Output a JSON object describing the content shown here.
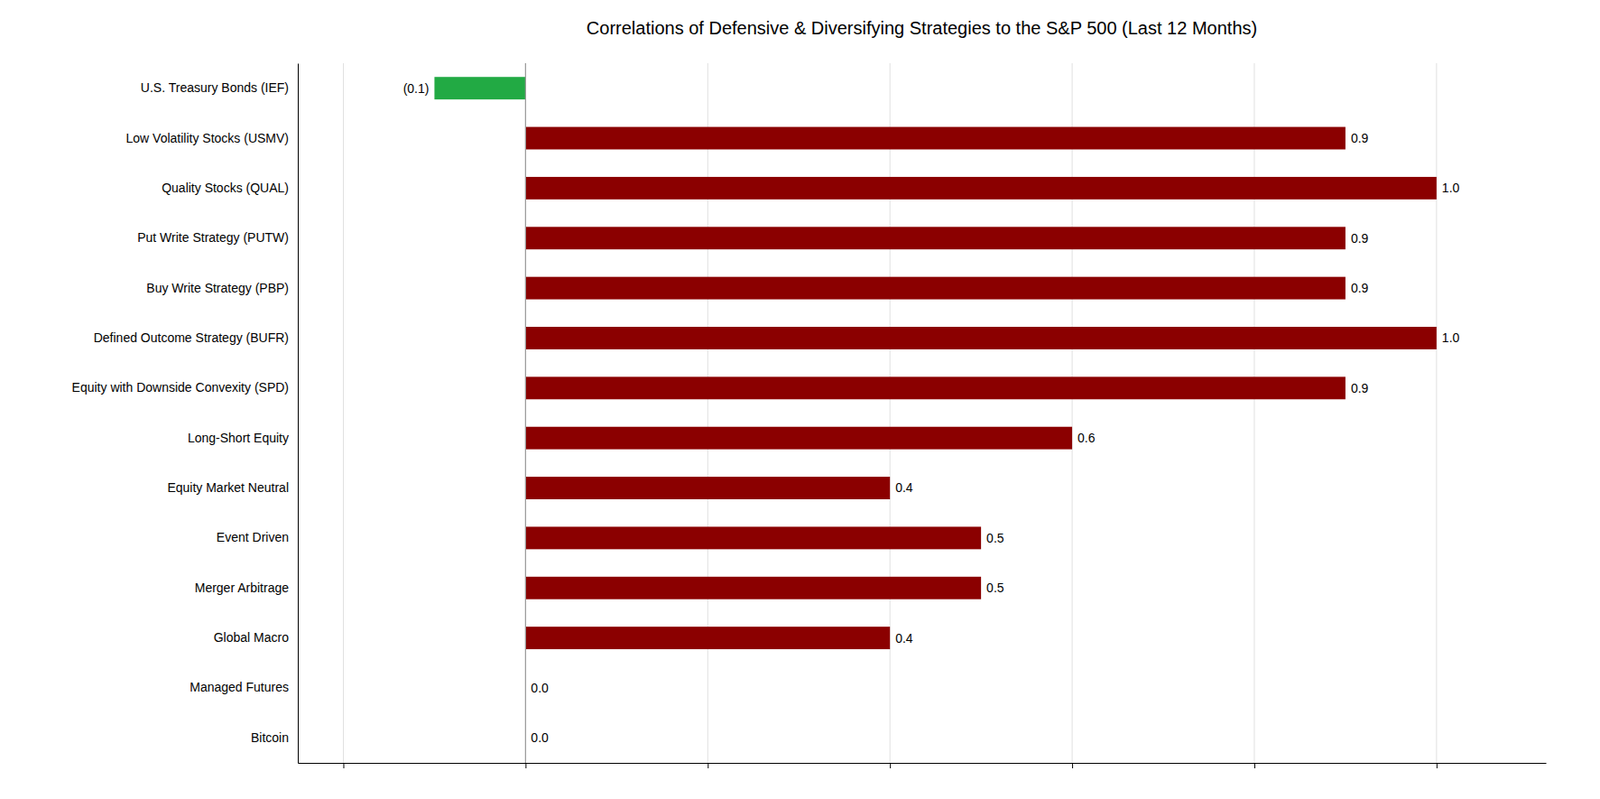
{
  "chart_data": {
    "type": "bar",
    "orientation": "horizontal",
    "title": "Correlations of Defensive & Diversifying Strategies to the S&P 500 (Last 12 Months)",
    "categories": [
      "Bitcoin",
      "Managed Futures",
      "Global Macro",
      "Merger Arbitrage",
      "Event Driven",
      "Equity Market Neutral",
      "Long-Short Equity",
      "Equity with Downside Convexity (SPD)",
      "Defined Outcome Strategy (BUFR)",
      "Buy Write Strategy (PBP)",
      "Put Write Strategy (PUTW)",
      "Quality Stocks (QUAL)",
      "Low Volatility Stocks (USMV)",
      "U.S. Treasury Bonds (IEF)"
    ],
    "values": [
      0.0,
      0.0,
      0.4,
      0.5,
      0.5,
      0.4,
      0.6,
      0.9,
      1.0,
      0.9,
      0.9,
      1.0,
      0.9,
      -0.1
    ],
    "value_labels": [
      "0.0",
      "0.0",
      "0.4",
      "0.5",
      "0.5",
      "0.4",
      "0.6",
      "0.9",
      "1.0",
      "0.9",
      "0.9",
      "1.0",
      "0.9",
      "(0.1)"
    ],
    "colors": [
      "#8b0000",
      "#22aa44",
      "#8b0000",
      "#8b0000",
      "#8b0000",
      "#8b0000",
      "#8b0000",
      "#8b0000",
      "#8b0000",
      "#8b0000",
      "#8b0000",
      "#8b0000",
      "#8b0000",
      "#22aa44"
    ],
    "xlim": [
      -0.25,
      1.12
    ],
    "xticks": [
      -0.2,
      0,
      0.2,
      0.4,
      0.6,
      0.8,
      1.0
    ],
    "grid": true,
    "data_labels": true,
    "tick_labels": "y"
  }
}
